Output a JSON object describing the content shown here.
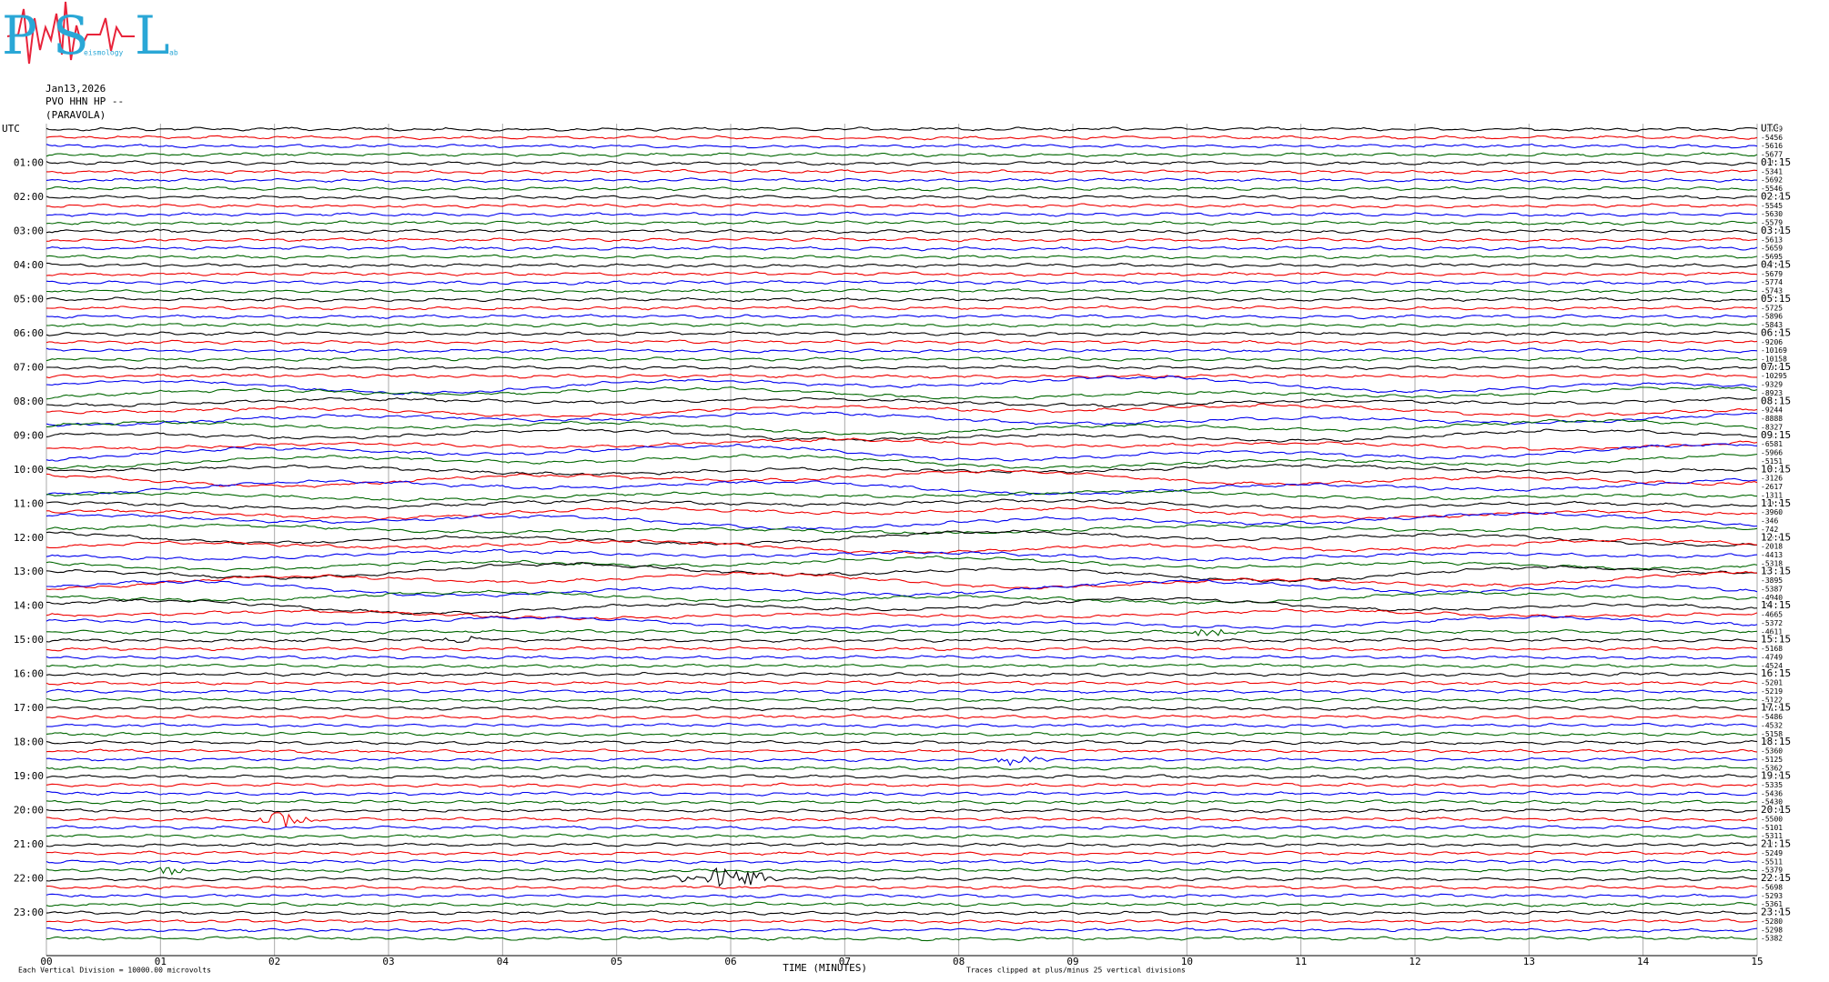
{
  "logo": {
    "letters": [
      "P",
      "S",
      "L"
    ],
    "small": [
      "eismology",
      "ab"
    ]
  },
  "header": {
    "date": "Jan13,2026",
    "station": "PVO HHN HP --",
    "site": "(PARAVOLA)"
  },
  "left_labels": [
    "UTC",
    "01:00",
    "02:00",
    "03:00",
    "04:00",
    "05:00",
    "06:00",
    "07:00",
    "08:00",
    "09:00",
    "10:00",
    "11:00",
    "12:00",
    "13:00",
    "14:00",
    "15:00",
    "16:00",
    "17:00",
    "18:00",
    "19:00",
    "20:00",
    "21:00",
    "22:00",
    "23:00"
  ],
  "right_labels": [
    "UTC",
    "01:15",
    "02:15",
    "03:15",
    "04:15",
    "05:15",
    "06:15",
    "07:15",
    "08:15",
    "09:15",
    "10:15",
    "11:15",
    "12:15",
    "13:15",
    "14:15",
    "15:15",
    "16:15",
    "17:15",
    "18:15",
    "19:15",
    "20:15",
    "21:15",
    "22:15",
    "23:15"
  ],
  "trace_labels": [
    "-5409",
    "-5456",
    "-5616",
    "-5677",
    "-5463",
    "-5341",
    "-5692",
    "-5546",
    "-5434",
    "-5545",
    "-5630",
    "-5579",
    "-5780",
    "-5613",
    "-5659",
    "-5695",
    "-5706",
    "-5679",
    "-5774",
    "-5743",
    "-5783",
    "-5725",
    "-5896",
    "-5843",
    "-5875",
    "-9206",
    "-10169",
    "-10158",
    "-9064",
    "-10295",
    "-9329",
    "-8923",
    "-9752",
    "-9244",
    "-8888",
    "-8327",
    "-7667",
    "-6581",
    "-5966",
    "-5151",
    "-4674",
    "-3126",
    "-2617",
    "-1311",
    "-2025",
    "-3960",
    "-346",
    "-742",
    "-1889",
    "-2018",
    "-4413",
    "-5318",
    "-4753",
    "-3895",
    "-5387",
    "-4940",
    "-5462",
    "-4665",
    "-5372",
    "-4611",
    "-4832",
    "-5168",
    "-4749",
    "-4524",
    "-4852",
    "-5201",
    "-5219",
    "-5122",
    "-5188",
    "-5486",
    "-4532",
    "-5158",
    "-5272",
    "-5360",
    "-5125",
    "-5362",
    "-5498",
    "-5335",
    "-5436",
    "-5430",
    "-5308",
    "-5500",
    "-5101",
    "-5311",
    "-5101",
    "-5249",
    "-5511",
    "-5379",
    "-5464",
    "-5698",
    "-5293",
    "-5361",
    "-5219",
    "-5280",
    "-5298",
    "-5382"
  ],
  "x_ticks": [
    "00",
    "01",
    "02",
    "03",
    "04",
    "05",
    "06",
    "07",
    "08",
    "09",
    "10",
    "11",
    "12",
    "13",
    "14",
    "15"
  ],
  "x_axis_title": "TIME (MINUTES)",
  "footer_left": "Each Vertical Division = 10000.00 microvolts",
  "footer_right": "Traces clipped at plus/minus 25 vertical divisions"
}
